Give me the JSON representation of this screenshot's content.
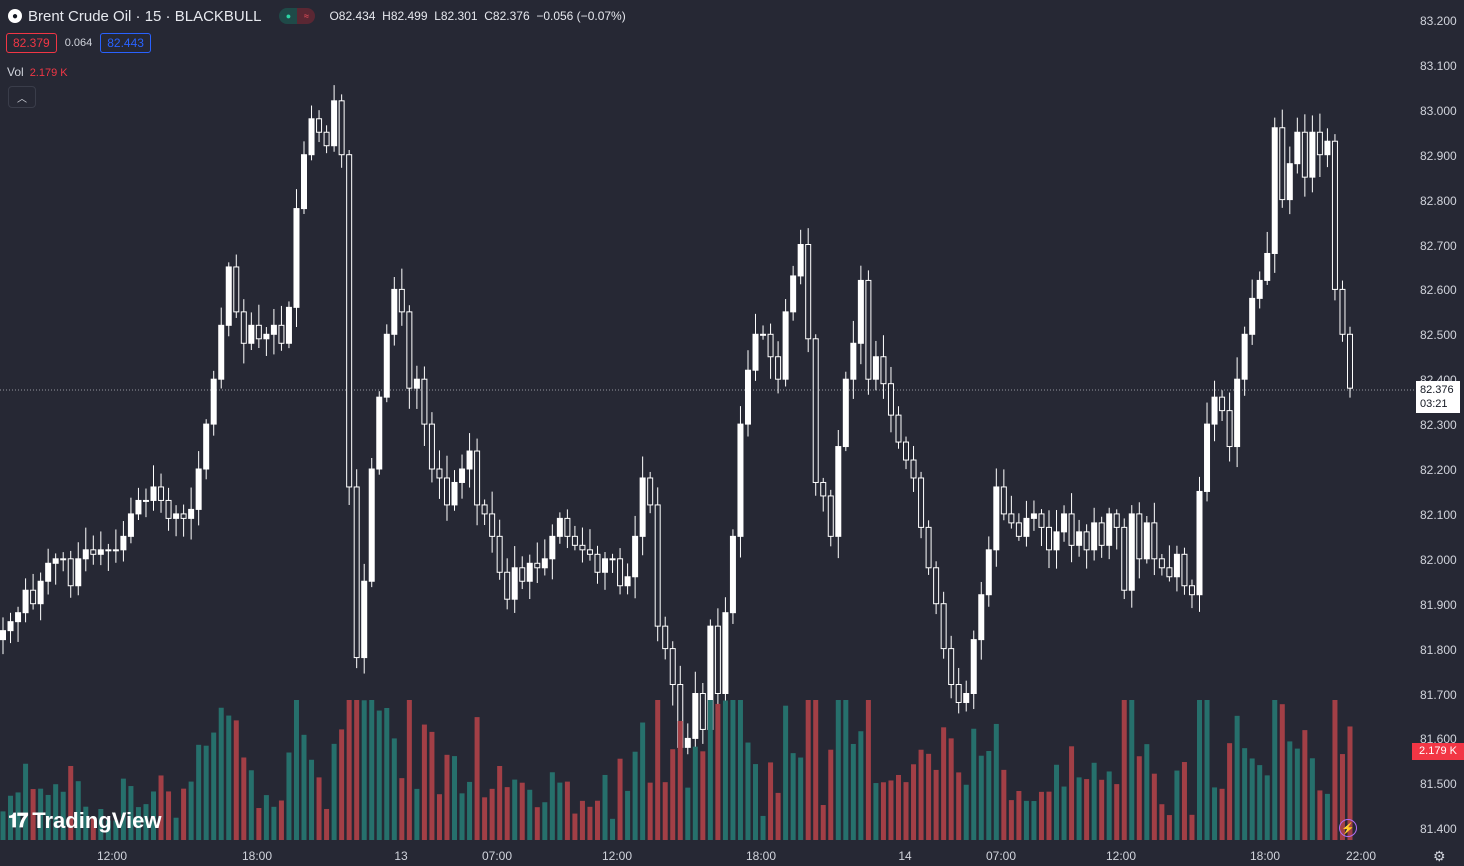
{
  "header": {
    "symbol": "Brent Crude Oil · 15 · BLACKBULL",
    "open": "O82.434",
    "high": "H82.499",
    "low": "L82.301",
    "close": "C82.376",
    "change": "−0.056 (−0.07%)"
  },
  "quote": {
    "bid": "82.379",
    "spread": "0.064",
    "ask": "82.443"
  },
  "volume": {
    "label": "Vol",
    "value": "2.179 K"
  },
  "price_axis": {
    "labels": [
      "83.200",
      "83.100",
      "83.000",
      "82.900",
      "82.800",
      "82.700",
      "82.600",
      "82.500",
      "82.400",
      "82.300",
      "82.200",
      "82.100",
      "82.000",
      "81.900",
      "81.800",
      "81.700",
      "81.600",
      "81.500",
      "81.400"
    ],
    "current_price": "82.376",
    "countdown": "03:21",
    "volume_tag": "2.179 K"
  },
  "time_axis": {
    "labels": [
      "12:00",
      "18:00",
      "13",
      "07:00",
      "12:00",
      "18:00",
      "14",
      "07:00",
      "12:00",
      "18:00",
      "22:00"
    ]
  },
  "brand": "TradingView",
  "colors": {
    "background": "#262834",
    "up": "#ffffff",
    "down": "#ffffff",
    "vol_up": "#26706c",
    "vol_down": "#a23f46",
    "accent_red": "#f23645",
    "accent_blue": "#2962ff"
  },
  "icons": [
    "droplet-icon",
    "chevron-up-icon",
    "lightning-icon",
    "gear-icon"
  ],
  "chart_data": {
    "type": "candlestick",
    "title": "Brent Crude Oil · 15 · BLACKBULL",
    "ylim": [
      81.38,
      83.24
    ],
    "close": [
      81.84,
      81.86,
      81.88,
      81.93,
      81.9,
      81.95,
      81.99,
      82.0,
      82.0,
      81.94,
      82.0,
      82.02,
      82.01,
      82.02,
      82.02,
      82.02,
      82.05,
      82.1,
      82.13,
      82.13,
      82.16,
      82.13,
      82.09,
      82.1,
      82.09,
      82.11,
      82.2,
      82.3,
      82.4,
      82.52,
      82.65,
      82.55,
      82.48,
      82.52,
      82.49,
      82.5,
      82.52,
      82.48,
      82.56,
      82.78,
      82.9,
      82.98,
      82.95,
      82.92,
      83.02,
      82.9,
      82.16,
      81.78,
      81.95,
      82.2,
      82.36,
      82.5,
      82.6,
      82.55,
      82.38,
      82.4,
      82.3,
      82.2,
      82.18,
      82.12,
      82.17,
      82.2,
      82.24,
      82.12,
      82.1,
      82.05,
      81.97,
      81.91,
      81.98,
      81.95,
      81.99,
      81.98,
      82.0,
      82.05,
      82.09,
      82.05,
      82.03,
      82.02,
      82.01,
      81.97,
      82.0,
      82.0,
      81.94,
      81.96,
      82.05,
      82.18,
      82.12,
      81.85,
      81.8,
      81.72,
      81.58,
      81.6,
      81.7,
      81.62,
      81.85,
      81.7,
      81.88,
      82.05,
      82.3,
      82.42,
      82.5,
      82.5,
      82.45,
      82.4,
      82.55,
      82.63,
      82.7,
      82.49,
      82.17,
      82.14,
      82.05,
      82.25,
      82.4,
      82.48,
      82.62,
      82.4,
      82.45,
      82.39,
      82.32,
      82.26,
      82.22,
      82.18,
      82.07,
      81.98,
      81.9,
      81.8,
      81.72,
      81.68,
      81.7,
      81.82,
      81.92,
      82.02,
      82.16,
      82.1,
      82.08,
      82.05,
      82.09,
      82.1,
      82.07,
      82.02,
      82.06,
      82.1,
      82.03,
      82.06,
      82.02,
      82.08,
      82.03,
      82.1,
      82.07,
      81.93,
      82.1,
      82.0,
      82.08,
      82.0,
      81.98,
      81.96,
      82.01,
      81.94,
      81.92,
      82.15,
      82.3,
      82.36,
      82.33,
      82.25,
      82.4,
      82.5,
      82.58,
      82.62,
      82.68,
      82.96,
      82.8,
      82.88,
      82.95,
      82.85,
      82.95,
      82.9,
      82.93,
      82.6,
      82.5,
      82.38
    ]
  }
}
